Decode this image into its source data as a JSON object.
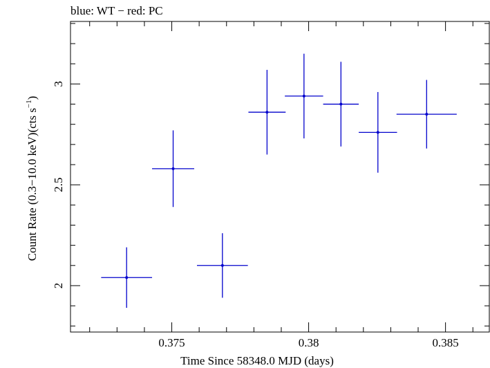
{
  "chart_data": {
    "type": "scatter",
    "title": "blue: WT − red: PC",
    "xlabel": "Time Since 58348.0 MJD (days)",
    "ylabel_main": "Count Rate (0.3−10.0 keV)(cts s",
    "ylabel_sup": "−1",
    "ylabel_close": ")",
    "xlim": [
      0.3713,
      0.3866
    ],
    "ylim": [
      1.77,
      3.31
    ],
    "xticks": [
      0.375,
      0.38,
      0.385
    ],
    "xtick_labels": [
      "0.375",
      "0.38",
      "0.385"
    ],
    "yticks": [
      2,
      2.5,
      3
    ],
    "ytick_labels": [
      "2",
      "2.5",
      "3"
    ],
    "x_minor_step": 0.001,
    "y_minor_step": 0.1,
    "series": [
      {
        "color": "#0000cc",
        "points": [
          {
            "x": 0.37335,
            "xerr": 0.00093,
            "y": 2.04,
            "yerr": 0.15
          },
          {
            "x": 0.37505,
            "xerr": 0.00077,
            "y": 2.58,
            "yerr": 0.19
          },
          {
            "x": 0.37685,
            "xerr": 0.00093,
            "y": 2.1,
            "yerr": 0.16
          },
          {
            "x": 0.37848,
            "xerr": 0.00068,
            "y": 2.86,
            "yerr": 0.21
          },
          {
            "x": 0.37983,
            "xerr": 0.0007,
            "y": 2.94,
            "yerr": 0.21
          },
          {
            "x": 0.38118,
            "xerr": 0.00065,
            "y": 2.9,
            "yerr": 0.21
          },
          {
            "x": 0.38253,
            "xerr": 0.0007,
            "y": 2.76,
            "yerr": 0.2
          },
          {
            "x": 0.38431,
            "xerr": 0.0011,
            "y": 2.85,
            "yerr": 0.17
          }
        ]
      }
    ]
  }
}
